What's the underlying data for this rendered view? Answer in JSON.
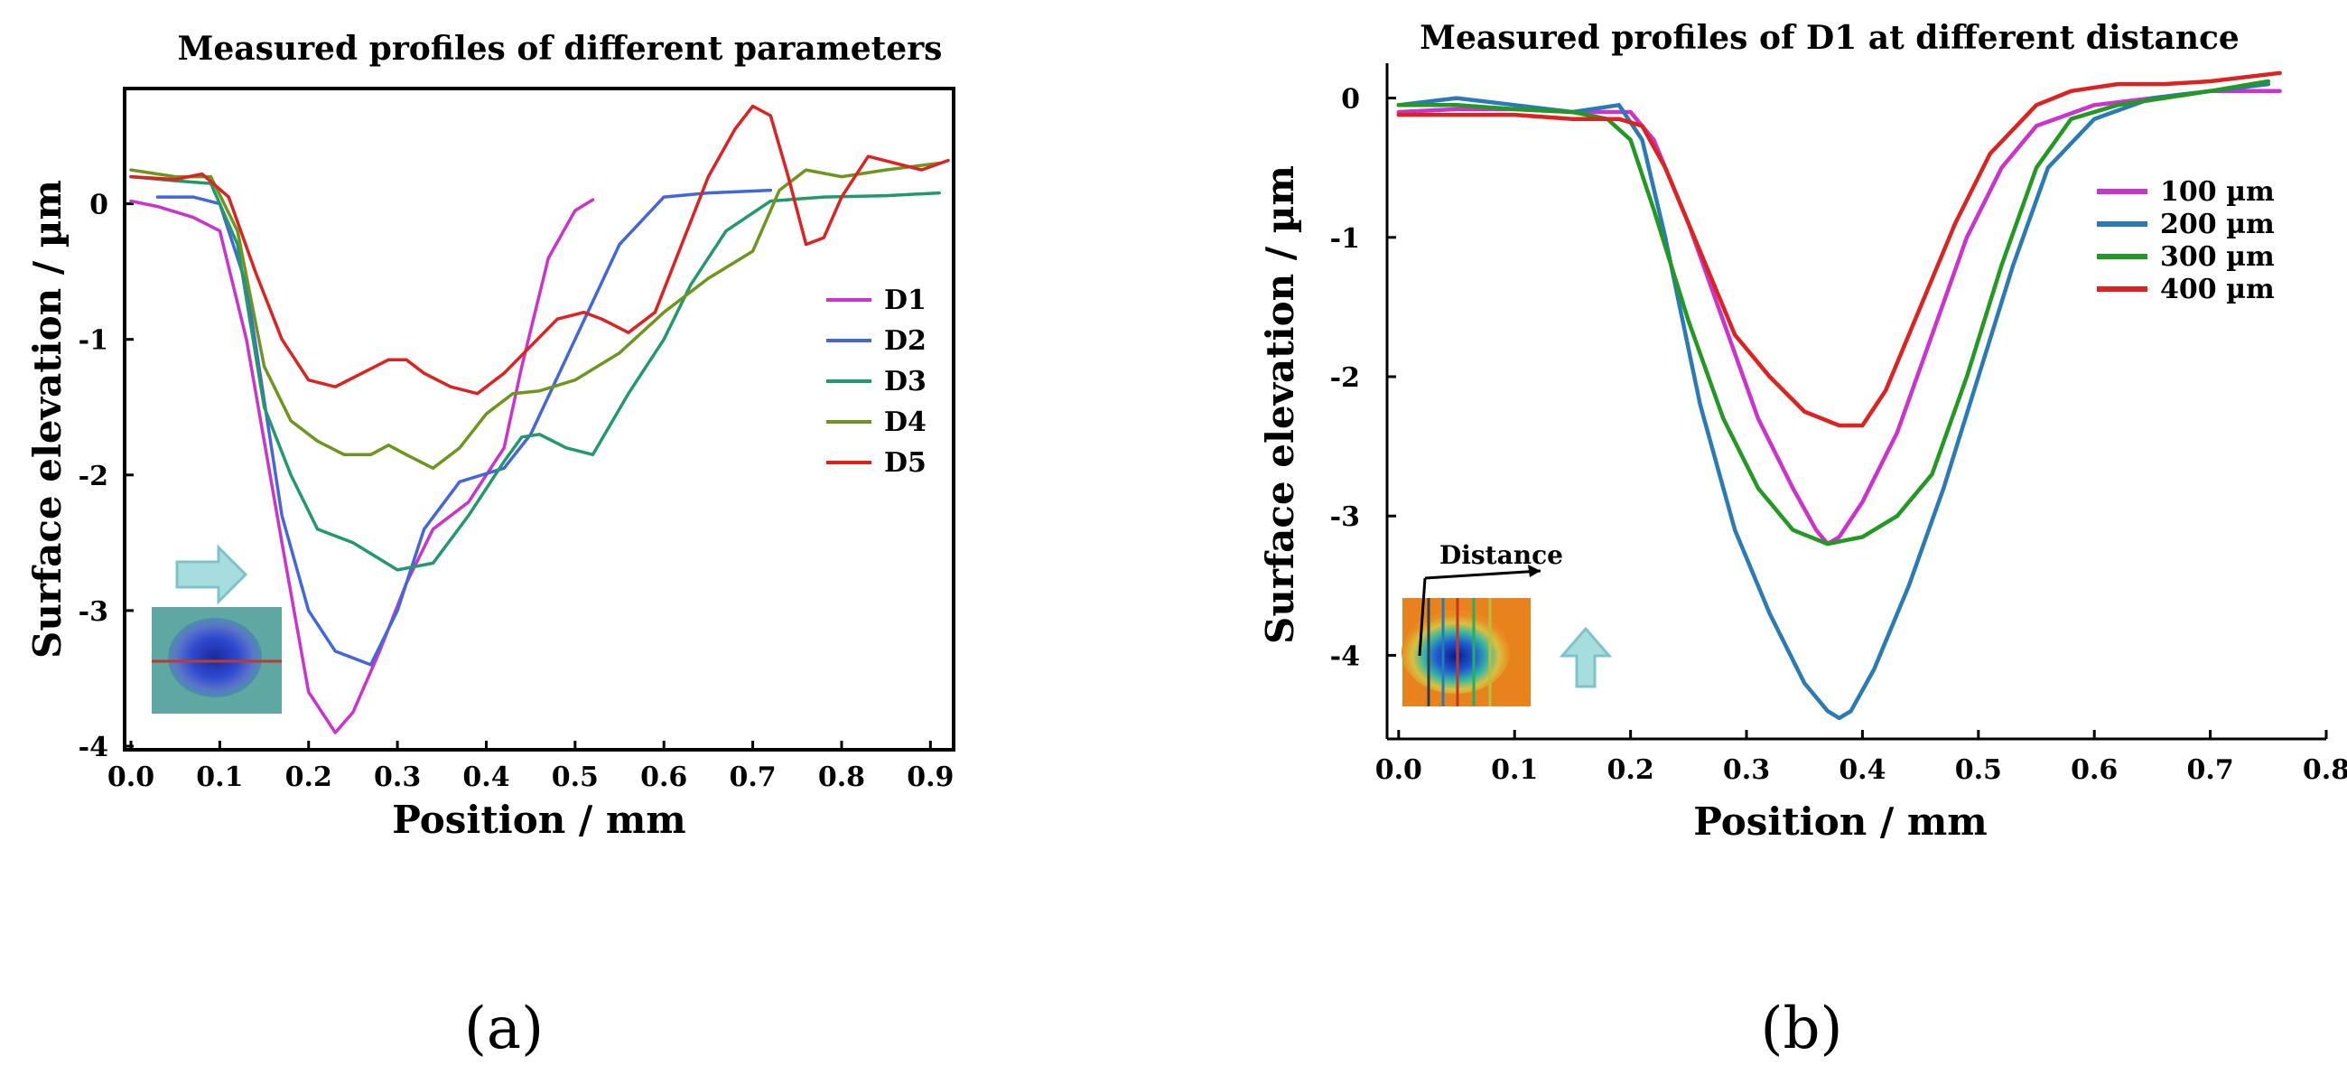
{
  "chart_data": [
    {
      "type": "line",
      "title": "Measured profiles of different parameters",
      "xlabel": "Position / mm",
      "ylabel": "Surface elevation / µm",
      "xlim": [
        0,
        0.92
      ],
      "ylim": [
        -4,
        0.85
      ],
      "xticks": [
        "0.0",
        "0.1",
        "0.2",
        "0.3",
        "0.4",
        "0.5",
        "0.6",
        "0.7",
        "0.8",
        "0.9"
      ],
      "yticks": [
        "0",
        "-1",
        "-2",
        "-3",
        "-4"
      ],
      "xtick_values": [
        0,
        0.1,
        0.2,
        0.3,
        0.4,
        0.5,
        0.6,
        0.7,
        0.8,
        0.9
      ],
      "ytick_values": [
        0,
        -1,
        -2,
        -3,
        -4
      ],
      "panel_label": "(a)",
      "inset": "false-color image of surface defect with horizontal red profile line",
      "legend_position": "right",
      "series": [
        {
          "name": "D1",
          "color": "#cc33cc",
          "x": [
            0.0,
            0.03,
            0.07,
            0.1,
            0.13,
            0.17,
            0.2,
            0.23,
            0.25,
            0.28,
            0.31,
            0.34,
            0.38,
            0.42,
            0.44,
            0.47,
            0.5,
            0.52
          ],
          "y": [
            0.02,
            -0.02,
            -0.1,
            -0.2,
            -1.0,
            -2.5,
            -3.6,
            -3.9,
            -3.75,
            -3.3,
            -2.8,
            -2.4,
            -2.2,
            -1.8,
            -1.2,
            -0.4,
            -0.05,
            0.03
          ]
        },
        {
          "name": "D2",
          "color": "#4466dd",
          "x": [
            0.03,
            0.07,
            0.1,
            0.13,
            0.17,
            0.2,
            0.23,
            0.27,
            0.3,
            0.33,
            0.37,
            0.42,
            0.45,
            0.5,
            0.55,
            0.6,
            0.65,
            0.72
          ],
          "y": [
            0.05,
            0.05,
            0.0,
            -0.6,
            -2.3,
            -3.0,
            -3.3,
            -3.4,
            -3.0,
            -2.4,
            -2.05,
            -1.95,
            -1.7,
            -1.0,
            -0.3,
            0.05,
            0.08,
            0.1
          ]
        },
        {
          "name": "D3",
          "color": "#22996a",
          "x": [
            0.0,
            0.05,
            0.09,
            0.12,
            0.15,
            0.18,
            0.21,
            0.25,
            0.3,
            0.34,
            0.38,
            0.42,
            0.44,
            0.46,
            0.49,
            0.52,
            0.56,
            0.6,
            0.63,
            0.67,
            0.72,
            0.78,
            0.85,
            0.91
          ],
          "y": [
            0.2,
            0.17,
            0.15,
            -0.3,
            -1.5,
            -2.0,
            -2.4,
            -2.5,
            -2.7,
            -2.65,
            -2.3,
            -1.9,
            -1.72,
            -1.7,
            -1.8,
            -1.85,
            -1.4,
            -1.0,
            -0.6,
            -0.2,
            0.02,
            0.05,
            0.06,
            0.08
          ]
        },
        {
          "name": "D4",
          "color": "#6e961e",
          "x": [
            0.0,
            0.05,
            0.09,
            0.12,
            0.15,
            0.18,
            0.21,
            0.24,
            0.27,
            0.29,
            0.31,
            0.34,
            0.37,
            0.4,
            0.43,
            0.46,
            0.5,
            0.55,
            0.6,
            0.65,
            0.7,
            0.73,
            0.76,
            0.8,
            0.85,
            0.91
          ],
          "y": [
            0.25,
            0.2,
            0.2,
            -0.2,
            -1.2,
            -1.6,
            -1.75,
            -1.85,
            -1.85,
            -1.78,
            -1.85,
            -1.95,
            -1.8,
            -1.55,
            -1.4,
            -1.38,
            -1.3,
            -1.1,
            -0.8,
            -0.55,
            -0.35,
            0.1,
            0.25,
            0.2,
            0.25,
            0.3
          ]
        },
        {
          "name": "D5",
          "color": "#dd2222",
          "x": [
            0.0,
            0.05,
            0.08,
            0.11,
            0.14,
            0.17,
            0.2,
            0.23,
            0.26,
            0.29,
            0.31,
            0.33,
            0.36,
            0.39,
            0.42,
            0.45,
            0.48,
            0.51,
            0.53,
            0.56,
            0.59,
            0.62,
            0.65,
            0.68,
            0.7,
            0.72,
            0.74,
            0.76,
            0.78,
            0.8,
            0.83,
            0.86,
            0.89,
            0.92
          ],
          "y": [
            0.2,
            0.18,
            0.22,
            0.05,
            -0.5,
            -1.0,
            -1.3,
            -1.35,
            -1.25,
            -1.15,
            -1.15,
            -1.25,
            -1.35,
            -1.4,
            -1.25,
            -1.05,
            -0.85,
            -0.8,
            -0.85,
            -0.95,
            -0.8,
            -0.3,
            0.2,
            0.55,
            0.72,
            0.65,
            0.2,
            -0.3,
            -0.25,
            0.05,
            0.35,
            0.3,
            0.25,
            0.32
          ]
        }
      ]
    },
    {
      "type": "line",
      "title": "Measured profiles of D1 at different distance",
      "xlabel": "Position / mm",
      "ylabel": "Surface elevation / µm",
      "xlim": [
        -0.01,
        0.8
      ],
      "ylim": [
        -4.6,
        0.25
      ],
      "xticks": [
        "0.0",
        "0.1",
        "0.2",
        "0.3",
        "0.4",
        "0.5",
        "0.6",
        "0.7",
        "0.8"
      ],
      "yticks": [
        "0",
        "-1",
        "-2",
        "-3",
        "-4"
      ],
      "xtick_values": [
        0,
        0.1,
        0.2,
        0.3,
        0.4,
        0.5,
        0.6,
        0.7,
        0.8
      ],
      "ytick_values": [
        0,
        -1,
        -2,
        -3,
        -4
      ],
      "panel_label": "(b)",
      "inset_label": "Distance",
      "legend_position": "right",
      "series": [
        {
          "name": "100 µm",
          "color": "#cc33cc",
          "x": [
            0.0,
            0.05,
            0.1,
            0.15,
            0.2,
            0.22,
            0.25,
            0.28,
            0.31,
            0.34,
            0.36,
            0.37,
            0.38,
            0.4,
            0.43,
            0.46,
            0.49,
            0.52,
            0.55,
            0.6,
            0.65,
            0.7,
            0.76
          ],
          "y": [
            -0.1,
            -0.08,
            -0.08,
            -0.1,
            -0.1,
            -0.3,
            -0.9,
            -1.6,
            -2.3,
            -2.8,
            -3.1,
            -3.2,
            -3.15,
            -2.9,
            -2.4,
            -1.7,
            -1.0,
            -0.5,
            -0.2,
            -0.05,
            0.0,
            0.05,
            0.05
          ]
        },
        {
          "name": "200 µm",
          "color": "#2a7bb5",
          "x": [
            0.0,
            0.05,
            0.1,
            0.15,
            0.19,
            0.21,
            0.23,
            0.26,
            0.29,
            0.32,
            0.35,
            0.37,
            0.38,
            0.39,
            0.41,
            0.44,
            0.47,
            0.5,
            0.53,
            0.56,
            0.6,
            0.65,
            0.7,
            0.75
          ],
          "y": [
            -0.05,
            0.0,
            -0.05,
            -0.1,
            -0.05,
            -0.3,
            -1.0,
            -2.2,
            -3.1,
            -3.7,
            -4.2,
            -4.4,
            -4.45,
            -4.4,
            -4.1,
            -3.5,
            -2.8,
            -2.0,
            -1.2,
            -0.5,
            -0.15,
            0.0,
            0.05,
            0.1
          ]
        },
        {
          "name": "300 µm",
          "color": "#229922",
          "x": [
            0.0,
            0.05,
            0.1,
            0.15,
            0.18,
            0.2,
            0.22,
            0.25,
            0.28,
            0.31,
            0.34,
            0.37,
            0.4,
            0.43,
            0.46,
            0.49,
            0.52,
            0.55,
            0.58,
            0.62,
            0.66,
            0.7,
            0.75
          ],
          "y": [
            -0.05,
            -0.05,
            -0.08,
            -0.1,
            -0.15,
            -0.3,
            -0.8,
            -1.6,
            -2.3,
            -2.8,
            -3.1,
            -3.2,
            -3.15,
            -3.0,
            -2.7,
            -2.0,
            -1.2,
            -0.5,
            -0.15,
            -0.05,
            0.0,
            0.05,
            0.12
          ]
        },
        {
          "name": "400 µm",
          "color": "#dd2222",
          "x": [
            0.0,
            0.05,
            0.1,
            0.15,
            0.19,
            0.21,
            0.23,
            0.26,
            0.29,
            0.32,
            0.35,
            0.38,
            0.4,
            0.42,
            0.45,
            0.48,
            0.51,
            0.55,
            0.58,
            0.62,
            0.66,
            0.7,
            0.76
          ],
          "y": [
            -0.12,
            -0.12,
            -0.12,
            -0.15,
            -0.15,
            -0.2,
            -0.5,
            -1.1,
            -1.7,
            -2.0,
            -2.25,
            -2.35,
            -2.35,
            -2.1,
            -1.5,
            -0.9,
            -0.4,
            -0.05,
            0.05,
            0.1,
            0.1,
            0.12,
            0.18
          ]
        }
      ]
    }
  ]
}
